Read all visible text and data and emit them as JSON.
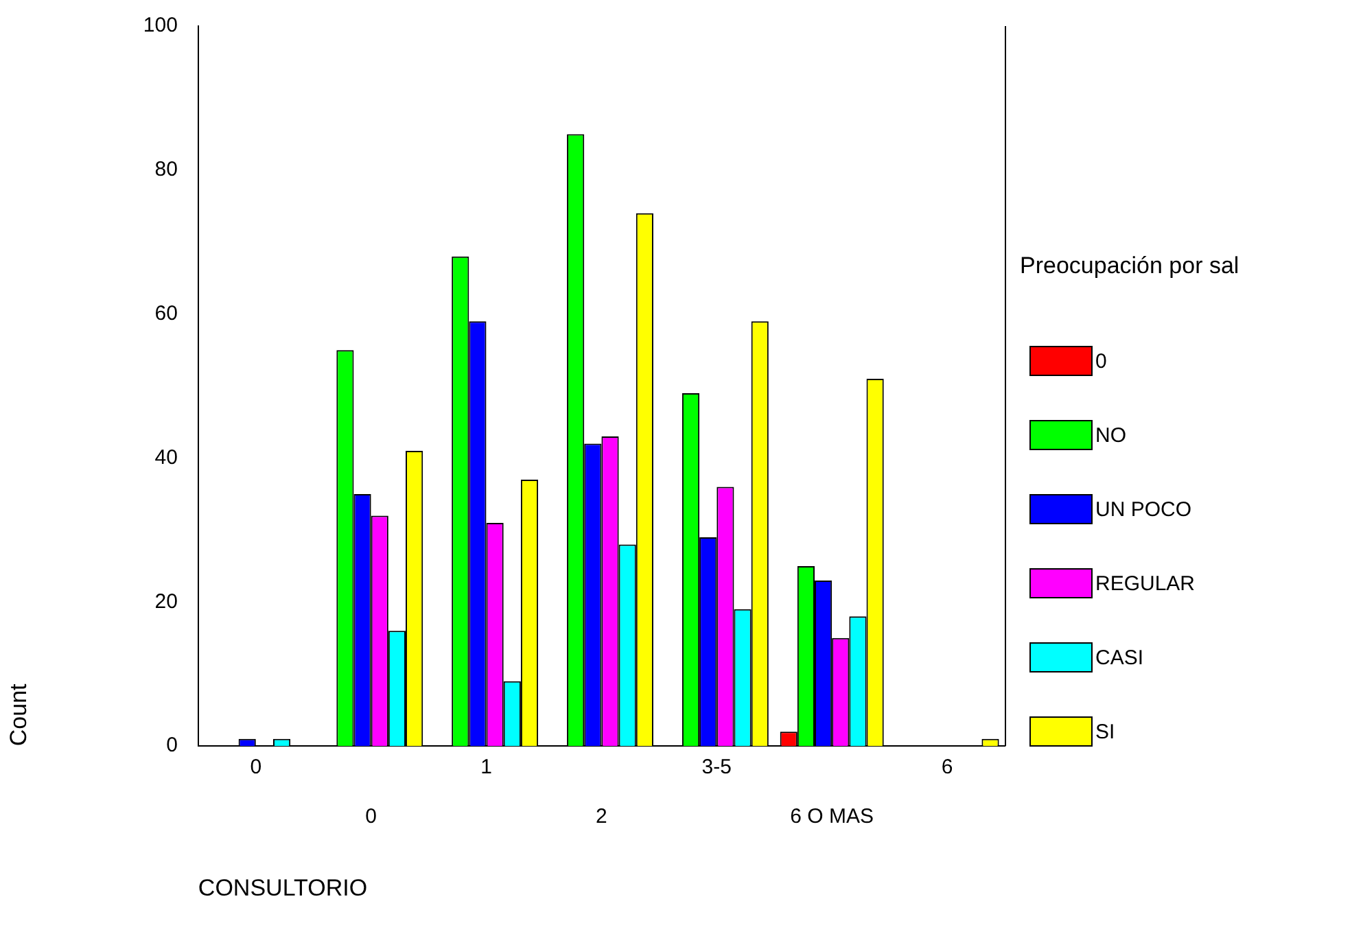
{
  "chart_data": {
    "type": "bar",
    "xlabel": "CONSULTORIO",
    "ylabel": "Count",
    "legend_title": "Preocupación por sal",
    "categories": [
      "0",
      "0",
      "1",
      "2",
      "3-5",
      "6 O MAS",
      "6"
    ],
    "series": [
      {
        "name": "0",
        "color": "#ff0000",
        "values": [
          0,
          0,
          0,
          0,
          0,
          2,
          0
        ]
      },
      {
        "name": "NO",
        "color": "#00ff00",
        "values": [
          0,
          55,
          68,
          85,
          49,
          25,
          0
        ]
      },
      {
        "name": "UN POCO",
        "color": "#0000ff",
        "values": [
          1,
          35,
          59,
          42,
          29,
          23,
          0
        ]
      },
      {
        "name": "REGULAR",
        "color": "#ff00ff",
        "values": [
          0,
          32,
          31,
          43,
          36,
          15,
          0
        ]
      },
      {
        "name": "CASI",
        "color": "#00ffff",
        "values": [
          1,
          16,
          9,
          28,
          19,
          18,
          0
        ]
      },
      {
        "name": "SI",
        "color": "#ffff00",
        "values": [
          0,
          41,
          37,
          74,
          59,
          51,
          1
        ]
      }
    ],
    "ylim": [
      0,
      100
    ],
    "yticks": [
      0,
      20,
      40,
      60,
      80,
      100
    ],
    "grid": false,
    "legend": "right"
  }
}
